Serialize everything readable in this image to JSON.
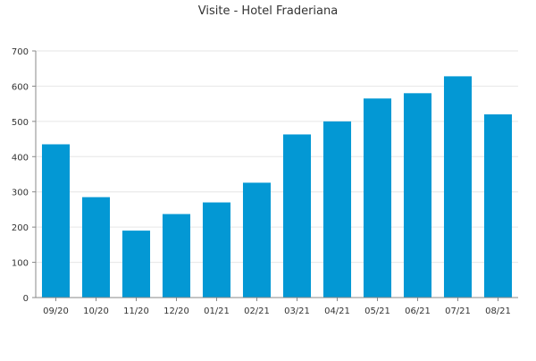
{
  "chart_data": {
    "type": "bar",
    "title": "Visite - Hotel Fraderiana",
    "xlabel": "",
    "ylabel": "",
    "categories": [
      "09/20",
      "10/20",
      "11/20",
      "12/20",
      "01/21",
      "02/21",
      "03/21",
      "04/21",
      "05/21",
      "06/21",
      "07/21",
      "08/21"
    ],
    "values": [
      435,
      285,
      190,
      237,
      270,
      326,
      463,
      500,
      565,
      580,
      628,
      520
    ],
    "ylim": [
      0,
      700
    ],
    "yticks": [
      0,
      100,
      200,
      300,
      400,
      500,
      600,
      700
    ],
    "grid": true,
    "legend": "none",
    "colors": {
      "bar": "#0398d4",
      "grid": "#e6e6e6",
      "axis": "#888888",
      "text": "#333333"
    }
  }
}
